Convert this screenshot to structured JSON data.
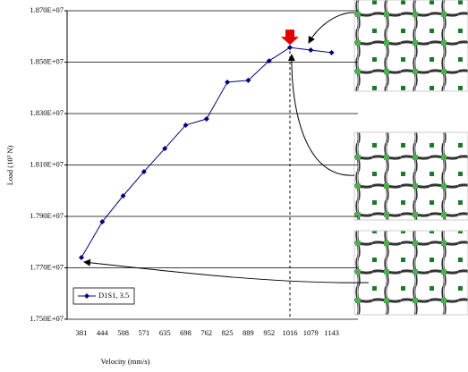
{
  "chart_data": {
    "type": "line",
    "x_label": "Velocity (mm/s)",
    "y_label": "Load (10³ N)",
    "categories": [
      "381",
      "444",
      "508",
      "571",
      "635",
      "698",
      "762",
      "825",
      "889",
      "952",
      "1016",
      "1079",
      "1143"
    ],
    "series": [
      {
        "name": "D1S1, 3.5",
        "color": "#000080",
        "values": [
          17740000,
          17879000,
          17980000,
          18074000,
          18164000,
          18255000,
          18279000,
          18422000,
          18429000,
          18505000,
          18557000,
          18547000,
          18537000
        ]
      }
    ],
    "ylim": [
      17500000,
      18700000
    ],
    "yticks": [
      {
        "value": 17500000,
        "label": "1.750E+07"
      },
      {
        "value": 17700000,
        "label": "1.770E+07"
      },
      {
        "value": 17900000,
        "label": "1.790E+07"
      },
      {
        "value": 18100000,
        "label": "1.810E+07"
      },
      {
        "value": 18300000,
        "label": "1.830E+07"
      },
      {
        "value": 18500000,
        "label": "1.850E+07"
      },
      {
        "value": 18700000,
        "label": "1.870E+07"
      }
    ],
    "grid": true,
    "legend": "lower left"
  }
}
